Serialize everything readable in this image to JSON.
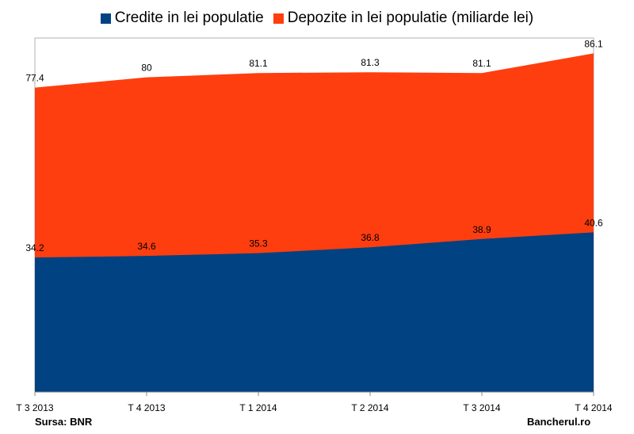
{
  "chart_data": {
    "type": "area",
    "stacked": false,
    "categories": [
      "T 3 2013",
      "T 4 2013",
      "T 1 2014",
      "T 2 2014",
      "T 3 2014",
      "T 4 2014"
    ],
    "series": [
      {
        "name": "Depozite in lei populatie (miliarde lei)",
        "values": [
          77.4,
          80,
          81.1,
          81.3,
          81.1,
          86.1
        ],
        "color": "#ff3e0f"
      },
      {
        "name": "Credite in lei populatie",
        "values": [
          34.2,
          34.6,
          35.3,
          36.8,
          38.9,
          40.6
        ],
        "color": "#004282"
      }
    ],
    "value_labels": {
      "deposits": [
        "77.4",
        "80",
        "81.1",
        "81.3",
        "81.1",
        "86.1"
      ],
      "credits": [
        "34.2",
        "34.6",
        "35.3",
        "36.8",
        "38.9",
        "40.6"
      ]
    },
    "ylim": [
      0,
      90
    ],
    "grid": false,
    "legend_position": "top"
  },
  "legend": {
    "credits_label": "Credite in lei populatie",
    "deposits_label": "Depozite in lei populatie (miliarde lei)"
  },
  "footer": {
    "source": "Sursa: BNR",
    "brand": "Bancherul.ro"
  }
}
